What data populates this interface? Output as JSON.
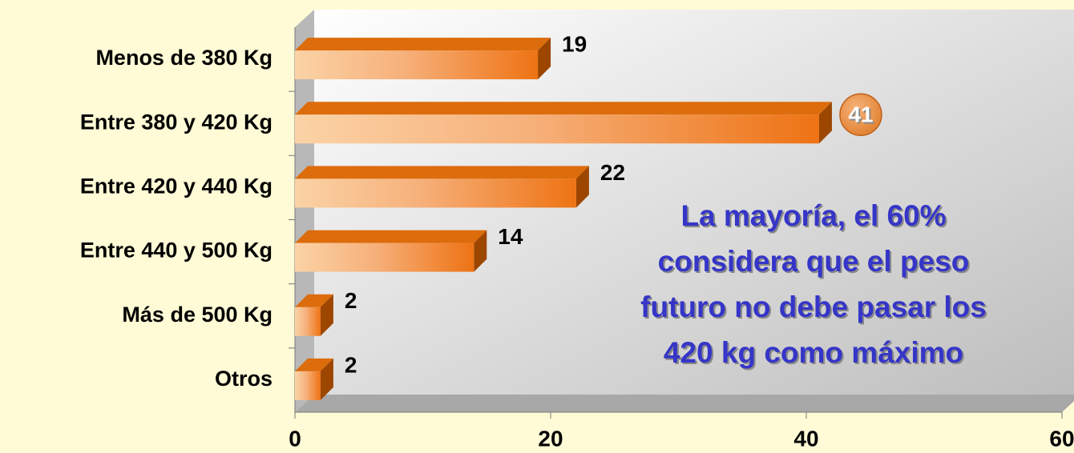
{
  "chart_data": {
    "type": "bar",
    "orientation": "horizontal",
    "categories": [
      "Menos de 380 Kg",
      "Entre 380 y 420 Kg",
      "Entre 420 y 440 Kg",
      "Entre 440 y 500 Kg",
      "Más de 500 Kg",
      "Otros"
    ],
    "values": [
      19,
      41,
      22,
      14,
      2,
      2
    ],
    "color": "#f07a1a",
    "xlim": [
      0,
      60
    ],
    "xticks": [
      0,
      20,
      40,
      60
    ],
    "grid": false,
    "highlight": 1,
    "annotation": [
      "La mayoría, el 60%",
      "considera que el peso",
      "futuro no debe pasar los",
      "420 kg como máximo"
    ]
  }
}
